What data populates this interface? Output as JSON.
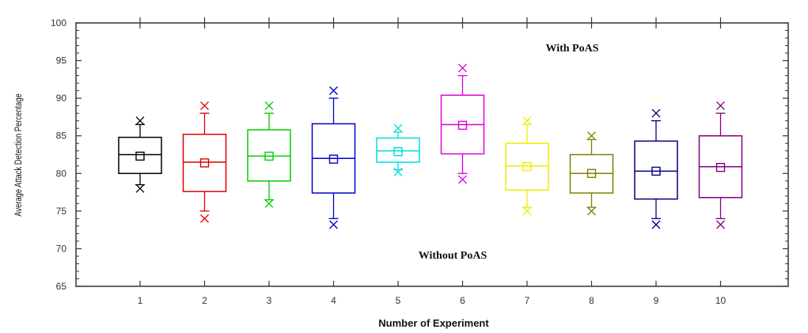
{
  "chart_data": {
    "type": "box",
    "xlabel": "Number of Experiment",
    "ylabel": "Average Attack Detection Percentage",
    "ylim": [
      65,
      100
    ],
    "yticks": [
      65,
      70,
      75,
      80,
      85,
      90,
      95,
      100
    ],
    "categories": [
      "1",
      "2",
      "3",
      "4",
      "5",
      "6",
      "7",
      "8",
      "9",
      "10"
    ],
    "annotations": [
      "With PoAS",
      "Without PoAS"
    ],
    "grid": false,
    "boxes": [
      {
        "category": "1",
        "color": "#000000",
        "q1": 80.0,
        "median": 82.5,
        "q3": 84.8,
        "mean": 82.3,
        "whisker_low": 78.5,
        "whisker_high": 86.5,
        "min_marker": 78.0,
        "max_marker": 87.0
      },
      {
        "category": "2",
        "color": "#e00000",
        "q1": 77.6,
        "median": 81.5,
        "q3": 85.2,
        "mean": 81.4,
        "whisker_low": 75.0,
        "whisker_high": 88.0,
        "min_marker": 74.0,
        "max_marker": 89.0
      },
      {
        "category": "3",
        "color": "#00cc00",
        "q1": 79.0,
        "median": 82.3,
        "q3": 85.8,
        "mean": 82.3,
        "whisker_low": 76.5,
        "whisker_high": 88.0,
        "min_marker": 76.0,
        "max_marker": 89.0
      },
      {
        "category": "4",
        "color": "#0000cc",
        "q1": 77.4,
        "median": 82.0,
        "q3": 86.6,
        "mean": 81.9,
        "whisker_low": 74.0,
        "whisker_high": 90.0,
        "min_marker": 73.2,
        "max_marker": 91.0
      },
      {
        "category": "5",
        "color": "#00dddd",
        "q1": 81.5,
        "median": 83.0,
        "q3": 84.7,
        "mean": 82.9,
        "whisker_low": 80.5,
        "whisker_high": 85.5,
        "min_marker": 80.2,
        "max_marker": 86.0
      },
      {
        "category": "6",
        "color": "#dd00dd",
        "q1": 82.6,
        "median": 86.5,
        "q3": 90.4,
        "mean": 86.4,
        "whisker_low": 80.0,
        "whisker_high": 93.0,
        "min_marker": 79.2,
        "max_marker": 94.0
      },
      {
        "category": "7",
        "color": "#eeee00",
        "q1": 77.8,
        "median": 81.0,
        "q3": 84.0,
        "mean": 80.9,
        "whisker_low": 75.5,
        "whisker_high": 86.5,
        "min_marker": 75.0,
        "max_marker": 87.0
      },
      {
        "category": "8",
        "color": "#808000",
        "q1": 77.4,
        "median": 80.0,
        "q3": 82.5,
        "mean": 80.0,
        "whisker_low": 75.5,
        "whisker_high": 84.5,
        "min_marker": 75.0,
        "max_marker": 85.0
      },
      {
        "category": "9",
        "color": "#000080",
        "q1": 76.6,
        "median": 80.3,
        "q3": 84.3,
        "mean": 80.3,
        "whisker_low": 74.0,
        "whisker_high": 87.0,
        "min_marker": 73.2,
        "max_marker": 88.0
      },
      {
        "category": "10",
        "color": "#800080",
        "q1": 76.8,
        "median": 80.9,
        "q3": 85.0,
        "mean": 80.8,
        "whisker_low": 74.0,
        "whisker_high": 88.0,
        "min_marker": 73.2,
        "max_marker": 89.0
      }
    ]
  }
}
